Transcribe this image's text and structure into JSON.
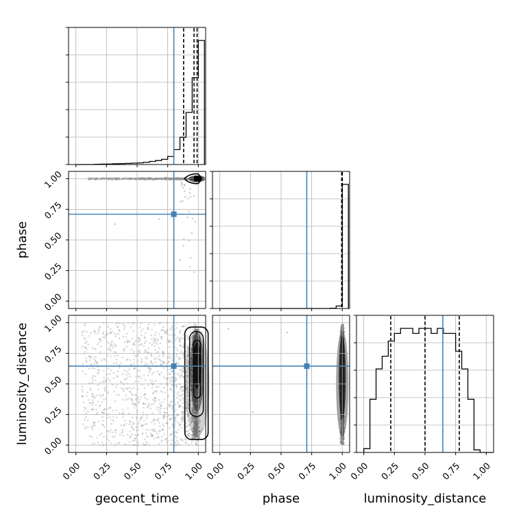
{
  "figure": {
    "type": "corner-plot"
  },
  "colors": {
    "truth": "#4682b4",
    "hist": "#000000",
    "grid": "#b0b0b0",
    "points": "#7a7a7a",
    "quantile": "#000000"
  },
  "chart_data": {
    "type": "corner",
    "parameters": [
      "geocent_time",
      "phase",
      "luminosity_distance"
    ],
    "axis_labels": {
      "x": [
        "geocent_time",
        "phase",
        "luminosity_distance"
      ],
      "y": [
        "",
        "phase",
        "luminosity_distance"
      ]
    },
    "tick_values": [
      0.0,
      0.25,
      0.5,
      0.75,
      1.0
    ],
    "tick_labels": [
      "0.00",
      "0.25",
      "0.50",
      "0.75",
      "1.00"
    ],
    "limits": [
      [
        -0.06,
        1.06
      ],
      [
        -0.06,
        1.06
      ],
      [
        -0.06,
        1.06
      ]
    ],
    "grid": true,
    "truths": [
      0.8,
      0.71,
      0.645
    ],
    "diagonal": [
      {
        "parameter": "geocent_time",
        "bin_edges": [
          0.0,
          0.05,
          0.1,
          0.15,
          0.2,
          0.25,
          0.3,
          0.35,
          0.4,
          0.45,
          0.5,
          0.55,
          0.6,
          0.65,
          0.7,
          0.75,
          0.8,
          0.85,
          0.9,
          0.95,
          1.0,
          1.05
        ],
        "counts": [
          0,
          0,
          0,
          0.002,
          0.003,
          0.004,
          0.006,
          0.007,
          0.009,
          0.011,
          0.013,
          0.018,
          0.025,
          0.032,
          0.042,
          0.065,
          0.12,
          0.22,
          0.42,
          0.7,
          1.0
        ],
        "quantiles": [
          0.88,
          0.965,
          0.99
        ]
      },
      {
        "parameter": "phase",
        "bin_edges": [
          0.0,
          0.05,
          0.1,
          0.15,
          0.2,
          0.25,
          0.3,
          0.35,
          0.4,
          0.45,
          0.5,
          0.55,
          0.6,
          0.65,
          0.7,
          0.75,
          0.8,
          0.85,
          0.9,
          0.95,
          1.0,
          1.05
        ],
        "counts": [
          0,
          0,
          0,
          0,
          0,
          0,
          0,
          0,
          0,
          0,
          0,
          0,
          0,
          0,
          0,
          0,
          0,
          0,
          0.002,
          0.02,
          1.0
        ],
        "quantiles": [
          0.995,
          1.0,
          1.0
        ]
      },
      {
        "parameter": "luminosity_distance",
        "bin_edges": [
          0.0,
          0.05,
          0.1,
          0.15,
          0.2,
          0.25,
          0.3,
          0.35,
          0.4,
          0.45,
          0.5,
          0.55,
          0.6,
          0.65,
          0.7,
          0.75,
          0.8,
          0.85,
          0.9,
          0.95,
          1.0,
          1.05
        ],
        "counts": [
          0.03,
          0.42,
          0.66,
          0.76,
          0.88,
          0.94,
          0.98,
          0.98,
          0.94,
          0.98,
          0.98,
          0.94,
          0.98,
          0.94,
          0.94,
          0.8,
          0.66,
          0.42,
          0.02,
          0.0,
          0.0
        ],
        "quantiles": [
          0.22,
          0.5,
          0.78
        ]
      }
    ],
    "pairs": [
      {
        "x": "geocent_time",
        "y": "phase",
        "note": "samples concentrate near (1.00, 1.00); thin trail along phase = 1.00"
      },
      {
        "x": "geocent_time",
        "y": "luminosity_distance",
        "note": "dense band at geocent_time near 1.00 spanning luminosity_distance 0.05-0.95"
      },
      {
        "x": "phase",
        "y": "luminosity_distance",
        "note": "dense band at phase near 1.00 spanning luminosity_distance 0-1"
      }
    ]
  }
}
